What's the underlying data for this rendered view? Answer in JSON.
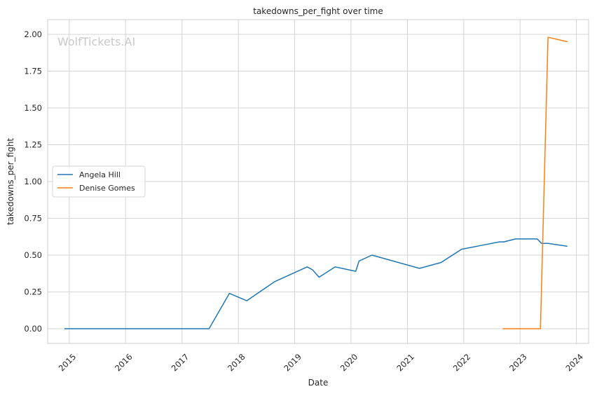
{
  "chart_data": {
    "type": "line",
    "title": "takedowns_per_fight over time",
    "xlabel": "Date",
    "ylabel": "takedowns_per_fight",
    "watermark": "WolfTickets.AI",
    "x_axis_type": "date",
    "xlim": [
      "2014-08-14",
      "2024-03-20"
    ],
    "ylim": [
      -0.1,
      2.1
    ],
    "x_ticks": [
      "2015",
      "2016",
      "2017",
      "2018",
      "2019",
      "2020",
      "2021",
      "2022",
      "2023",
      "2024"
    ],
    "y_ticks": [
      "0.00",
      "0.25",
      "0.50",
      "0.75",
      "1.00",
      "1.25",
      "1.50",
      "1.75",
      "2.00"
    ],
    "grid": true,
    "legend_position": "center-left",
    "series": [
      {
        "name": "Angela Hill",
        "color": "#1f77b4",
        "points": [
          [
            "2014-12-01",
            0.0
          ],
          [
            "2017-06-25",
            0.0
          ],
          [
            "2017-11-04",
            0.24
          ],
          [
            "2018-02-24",
            0.19
          ],
          [
            "2018-08-25",
            0.32
          ],
          [
            "2019-03-23",
            0.42
          ],
          [
            "2019-04-27",
            0.4
          ],
          [
            "2019-06-08",
            0.35
          ],
          [
            "2019-09-21",
            0.42
          ],
          [
            "2020-02-01",
            0.39
          ],
          [
            "2020-02-22",
            0.46
          ],
          [
            "2020-05-16",
            0.5
          ],
          [
            "2021-03-20",
            0.41
          ],
          [
            "2021-08-07",
            0.45
          ],
          [
            "2021-12-18",
            0.54
          ],
          [
            "2022-05-14",
            0.57
          ],
          [
            "2022-08-20",
            0.59
          ],
          [
            "2022-09-17",
            0.59
          ],
          [
            "2022-12-03",
            0.61
          ],
          [
            "2023-04-22",
            0.61
          ],
          [
            "2023-05-20",
            0.58
          ],
          [
            "2023-07-01",
            0.58
          ],
          [
            "2023-11-04",
            0.56
          ]
        ]
      },
      {
        "name": "Denise Gomes",
        "color": "#ff7f0e",
        "points": [
          [
            "2022-09-10",
            0.0
          ],
          [
            "2023-05-13",
            0.0
          ],
          [
            "2023-07-01",
            1.98
          ],
          [
            "2023-11-04",
            1.95
          ]
        ]
      }
    ]
  }
}
